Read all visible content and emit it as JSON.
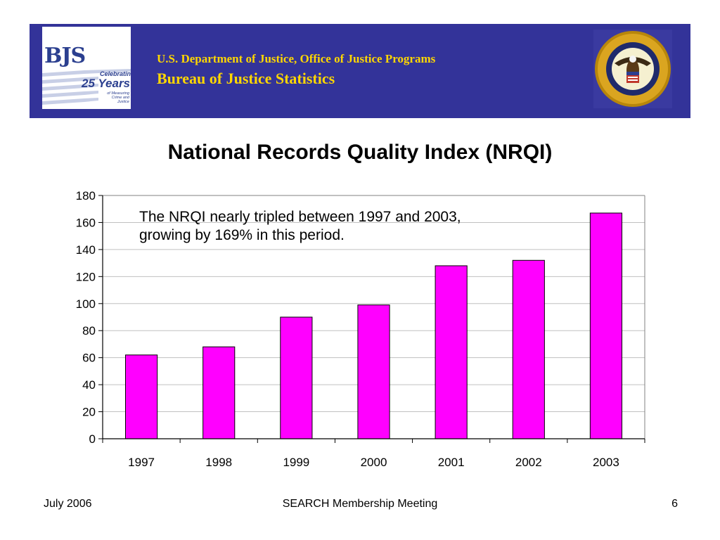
{
  "banner": {
    "department": "U.S. Department of Justice, Office of Justice Programs",
    "bureau": "Bureau of Justice Statistics",
    "background_color": "#333399",
    "text_color": "#ffd700",
    "logo": {
      "letters": "BJS",
      "celebrating": "Celebrating",
      "years": "25 Years",
      "tagline": "of Measuring Crime and Justice"
    }
  },
  "chart_data": {
    "type": "bar",
    "title": "National Records Quality Index (NRQI)",
    "categories": [
      "1997",
      "1998",
      "1999",
      "2000",
      "2001",
      "2002",
      "2003"
    ],
    "values": [
      62,
      68,
      90,
      99,
      128,
      132,
      167
    ],
    "ylim": [
      0,
      180
    ],
    "yticks": [
      0,
      20,
      40,
      60,
      80,
      100,
      120,
      140,
      160,
      180
    ],
    "xlabel": "",
    "ylabel": "",
    "grid": true,
    "legend": "none",
    "bar_color": "#ff00ff",
    "annotation": "The NRQI nearly tripled between 1997 and 2003, growing by 169% in this period."
  },
  "footer": {
    "date": "July 2006",
    "event": "SEARCH Membership Meeting",
    "page_number": "6"
  }
}
